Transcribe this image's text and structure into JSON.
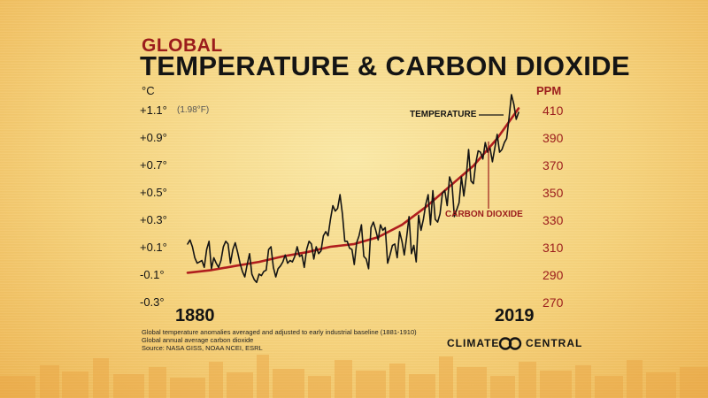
{
  "header": {
    "subtitle": "GLOBAL",
    "title": "TEMPERATURE & CARBON DIOXIDE"
  },
  "chart_data": {
    "type": "line",
    "x_range": [
      1880,
      2019
    ],
    "x_labels": [
      "1880",
      "2019"
    ],
    "left_axis": {
      "unit": "°C",
      "ylim": [
        -0.3,
        1.1
      ],
      "ticks": [
        "+1.1°",
        "+0.9°",
        "+0.7°",
        "+0.5°",
        "+0.3°",
        "+0.1°",
        "-0.1°",
        "-0.3°"
      ],
      "extra_label": "(1.98°F)"
    },
    "right_axis": {
      "unit": "PPM",
      "ylim": [
        270,
        410
      ],
      "ticks": [
        "410",
        "390",
        "370",
        "350",
        "330",
        "310",
        "290",
        "270"
      ]
    },
    "series": [
      {
        "name": "TEMPERATURE",
        "axis": "left",
        "color": "#141414",
        "x": [
          1880,
          1881,
          1882,
          1883,
          1884,
          1885,
          1886,
          1887,
          1888,
          1889,
          1890,
          1891,
          1892,
          1893,
          1894,
          1895,
          1896,
          1897,
          1898,
          1899,
          1900,
          1901,
          1902,
          1903,
          1904,
          1905,
          1906,
          1907,
          1908,
          1909,
          1910,
          1911,
          1912,
          1913,
          1914,
          1915,
          1916,
          1917,
          1918,
          1919,
          1920,
          1921,
          1922,
          1923,
          1924,
          1925,
          1926,
          1927,
          1928,
          1929,
          1930,
          1931,
          1932,
          1933,
          1934,
          1935,
          1936,
          1937,
          1938,
          1939,
          1940,
          1941,
          1942,
          1943,
          1944,
          1945,
          1946,
          1947,
          1948,
          1949,
          1950,
          1951,
          1952,
          1953,
          1954,
          1955,
          1956,
          1957,
          1958,
          1959,
          1960,
          1961,
          1962,
          1963,
          1964,
          1965,
          1966,
          1967,
          1968,
          1969,
          1970,
          1971,
          1972,
          1973,
          1974,
          1975,
          1976,
          1977,
          1978,
          1979,
          1980,
          1981,
          1982,
          1983,
          1984,
          1985,
          1986,
          1987,
          1988,
          1989,
          1990,
          1991,
          1992,
          1993,
          1994,
          1995,
          1996,
          1997,
          1998,
          1999,
          2000,
          2001,
          2002,
          2003,
          2004,
          2005,
          2006,
          2007,
          2008,
          2009,
          2010,
          2011,
          2012,
          2013,
          2014,
          2015,
          2016,
          2017,
          2018,
          2019
        ],
        "values": [
          0.12,
          0.15,
          0.1,
          0.02,
          -0.02,
          -0.01,
          0.0,
          -0.05,
          0.08,
          0.14,
          -0.06,
          0.02,
          -0.02,
          -0.05,
          0.0,
          0.1,
          0.14,
          0.12,
          -0.02,
          0.08,
          0.13,
          0.06,
          -0.02,
          -0.08,
          -0.12,
          -0.03,
          0.05,
          -0.1,
          -0.14,
          -0.16,
          -0.1,
          -0.11,
          -0.08,
          -0.07,
          0.08,
          0.1,
          -0.05,
          -0.12,
          -0.06,
          -0.04,
          -0.01,
          0.04,
          -0.02,
          0.0,
          -0.01,
          0.03,
          0.1,
          0.03,
          0.04,
          -0.05,
          0.08,
          0.14,
          0.12,
          0.01,
          0.1,
          0.05,
          0.07,
          0.18,
          0.21,
          0.18,
          0.3,
          0.4,
          0.36,
          0.38,
          0.48,
          0.34,
          0.14,
          0.14,
          0.09,
          0.08,
          -0.03,
          0.13,
          0.18,
          0.26,
          0.03,
          0.01,
          -0.06,
          0.24,
          0.28,
          0.22,
          0.15,
          0.26,
          0.22,
          0.24,
          -0.02,
          0.04,
          0.11,
          0.12,
          0.02,
          0.21,
          0.14,
          0.04,
          0.17,
          0.32,
          0.05,
          0.11,
          -0.01,
          0.33,
          0.22,
          0.3,
          0.41,
          0.48,
          0.26,
          0.51,
          0.3,
          0.28,
          0.34,
          0.49,
          0.51,
          0.4,
          0.61,
          0.56,
          0.32,
          0.37,
          0.42,
          0.61,
          0.47,
          0.61,
          0.81,
          0.58,
          0.56,
          0.71,
          0.8,
          0.79,
          0.74,
          0.86,
          0.79,
          0.82,
          0.72,
          0.82,
          0.92,
          0.79,
          0.81,
          0.86,
          0.89,
          1.04,
          1.21,
          1.14,
          1.03,
          1.08
        ]
      },
      {
        "name": "CARBON DIOXIDE",
        "axis": "right",
        "color": "#b01e1e",
        "x": [
          1880,
          1890,
          1900,
          1910,
          1920,
          1930,
          1940,
          1950,
          1960,
          1970,
          1980,
          1990,
          2000,
          2010,
          2019
        ],
        "values": [
          291,
          293,
          296,
          299,
          303,
          306,
          310,
          312,
          317,
          326,
          339,
          354,
          369,
          389,
          411
        ]
      }
    ],
    "annotations": [
      "TEMPERATURE",
      "CARBON DIOXIDE"
    ],
    "grid": false,
    "legend": "none"
  },
  "footer": {
    "notes": [
      "Global temperature anomalies averaged and adjusted to early industrial baseline (1881-1910)",
      "Global annual average carbon dioxide",
      "Source: NASA GISS, NOAA NCEI, ESRL"
    ],
    "brand_left": "CLIMATE",
    "brand_right": "CENTRAL"
  }
}
